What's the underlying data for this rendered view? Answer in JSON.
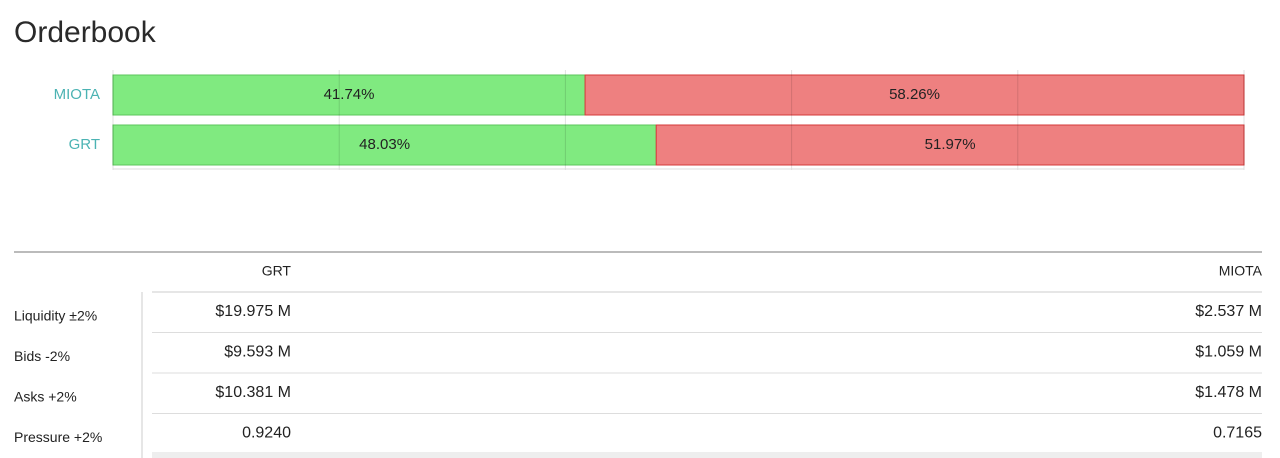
{
  "header": {
    "title": "Orderbook"
  },
  "chart_data": {
    "type": "bar",
    "orientation": "horizontal",
    "stacked": true,
    "categories": [
      "MIOTA",
      "GRT"
    ],
    "series": [
      {
        "color": "#80ea80",
        "values": [
          41.74,
          48.03
        ],
        "value_labels": [
          "41.74%",
          "48.03%"
        ]
      },
      {
        "color": "#ee8080",
        "values": [
          58.26,
          51.97
        ],
        "value_labels": [
          "58.26%",
          "51.97%"
        ]
      }
    ],
    "xlim": [
      0,
      100
    ],
    "xticks": [
      0,
      20,
      40,
      60,
      80,
      100
    ],
    "grid": true
  },
  "table": {
    "columns": [
      "GRT",
      "MIOTA"
    ],
    "rows": [
      [
        "Liquidity ±2%",
        "$19.975 M",
        "$2.537 M"
      ],
      [
        "Bids -2%",
        "$9.593 M",
        "$1.059 M"
      ],
      [
        "Asks +2%",
        "$10.381 M",
        "$1.478 M"
      ],
      [
        "Pressure +2%",
        "0.9240",
        "0.7165"
      ]
    ]
  }
}
